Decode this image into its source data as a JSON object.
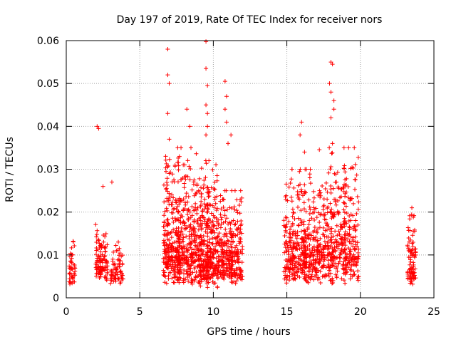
{
  "chart_data": {
    "type": "scatter",
    "title": "Day 197 of 2019, Rate Of TEC Index for receiver nors",
    "xlabel": "GPS time / hours",
    "ylabel": "ROTI / TECUs",
    "xlim": [
      0,
      25
    ],
    "ylim": [
      0,
      0.06
    ],
    "xticks": [
      0,
      5,
      10,
      15,
      20,
      25
    ],
    "xtick_labels": [
      "0",
      "5",
      "10",
      "15",
      "20",
      "25"
    ],
    "yticks": [
      0,
      0.01,
      0.02,
      0.03,
      0.04,
      0.05,
      0.06
    ],
    "ytick_labels": [
      "0",
      "0.01",
      "0.02",
      "0.03",
      "0.04",
      "0.05",
      "0.06"
    ],
    "grid": true,
    "marker": "+",
    "color": "#ff0000",
    "series": [
      {
        "name": "ROTI",
        "clusters": [
          {
            "x_range": [
              0.2,
              0.6
            ],
            "y_range": [
              0.003,
              0.015
            ],
            "count": 45
          },
          {
            "x_range": [
              2.0,
              2.8
            ],
            "y_range": [
              0.004,
              0.019
            ],
            "count": 110
          },
          {
            "x_range": [
              3.0,
              3.9
            ],
            "y_range": [
              0.003,
              0.013
            ],
            "count": 70
          },
          {
            "x_range": [
              6.6,
              8.9
            ],
            "y_range": [
              0.003,
              0.035
            ],
            "count": 520
          },
          {
            "x_range": [
              8.9,
              10.3
            ],
            "y_range": [
              0.002,
              0.032
            ],
            "count": 360
          },
          {
            "x_range": [
              10.3,
              12.0
            ],
            "y_range": [
              0.003,
              0.025
            ],
            "count": 300
          },
          {
            "x_range": [
              14.8,
              17.2
            ],
            "y_range": [
              0.003,
              0.03
            ],
            "count": 420
          },
          {
            "x_range": [
              17.2,
              19.9
            ],
            "y_range": [
              0.003,
              0.035
            ],
            "count": 440
          },
          {
            "x_range": [
              23.2,
              23.8
            ],
            "y_range": [
              0.002,
              0.021
            ],
            "count": 90
          }
        ],
        "peaks": [
          {
            "x": 2.1,
            "y": 0.04
          },
          {
            "x": 2.2,
            "y": 0.0395
          },
          {
            "x": 2.5,
            "y": 0.026
          },
          {
            "x": 3.1,
            "y": 0.027
          },
          {
            "x": 6.9,
            "y": 0.058
          },
          {
            "x": 6.9,
            "y": 0.052
          },
          {
            "x": 7.0,
            "y": 0.05
          },
          {
            "x": 6.9,
            "y": 0.043
          },
          {
            "x": 7.0,
            "y": 0.037
          },
          {
            "x": 8.2,
            "y": 0.044
          },
          {
            "x": 8.4,
            "y": 0.04
          },
          {
            "x": 9.5,
            "y": 0.0598
          },
          {
            "x": 9.5,
            "y": 0.0535
          },
          {
            "x": 9.6,
            "y": 0.0495
          },
          {
            "x": 9.5,
            "y": 0.045
          },
          {
            "x": 9.6,
            "y": 0.043
          },
          {
            "x": 9.6,
            "y": 0.04
          },
          {
            "x": 9.5,
            "y": 0.038
          },
          {
            "x": 10.8,
            "y": 0.0505
          },
          {
            "x": 10.9,
            "y": 0.047
          },
          {
            "x": 10.8,
            "y": 0.044
          },
          {
            "x": 10.9,
            "y": 0.041
          },
          {
            "x": 11.2,
            "y": 0.038
          },
          {
            "x": 11.0,
            "y": 0.036
          },
          {
            "x": 16.0,
            "y": 0.041
          },
          {
            "x": 15.9,
            "y": 0.038
          },
          {
            "x": 16.2,
            "y": 0.034
          },
          {
            "x": 18.0,
            "y": 0.055
          },
          {
            "x": 18.1,
            "y": 0.0545
          },
          {
            "x": 17.9,
            "y": 0.05
          },
          {
            "x": 18.0,
            "y": 0.048
          },
          {
            "x": 18.2,
            "y": 0.046
          },
          {
            "x": 18.0,
            "y": 0.042
          },
          {
            "x": 18.2,
            "y": 0.044
          },
          {
            "x": 18.1,
            "y": 0.036
          },
          {
            "x": 19.2,
            "y": 0.035
          },
          {
            "x": 23.5,
            "y": 0.021
          }
        ]
      }
    ]
  }
}
